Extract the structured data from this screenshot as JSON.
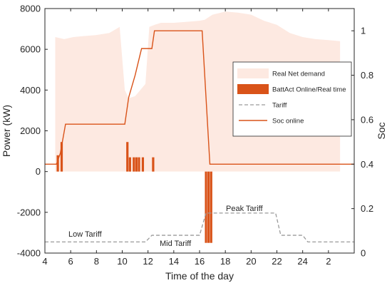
{
  "chart_data": {
    "type": "line",
    "x_ticks": [
      "4",
      "6",
      "8",
      "10",
      "12",
      "14",
      "16",
      "18",
      "20",
      "22",
      "24",
      "2"
    ],
    "xlabel": "Time of the day",
    "ylabel_left": "Power (kW)",
    "ylabel_right": "Soc",
    "ylim_left": [
      -4000,
      8000
    ],
    "ylim_right": [
      0.0,
      1.1
    ],
    "yticks_left": [
      "8000",
      "6000",
      "4000",
      "2000",
      "0",
      "-2000",
      "-4000"
    ],
    "yticks_right": [
      "1",
      "0.8",
      "0.6",
      "0.4",
      "0.2",
      "0"
    ],
    "grid": false,
    "legend_position": "right, middle",
    "legend": {
      "net_demand": "Real Net demand",
      "batt": "BattAct Online/Real time",
      "tariff": "Tariff",
      "soc": "Soc online"
    },
    "annotations": {
      "low": "Low Tariff",
      "mid": "Mid Tariff",
      "peak": "Peak Tariff"
    },
    "colors": {
      "net_demand": "#fde9e1",
      "batt": "#d95319",
      "tariff": "#9a9a9a",
      "soc": "#d95319",
      "axis": "#262626"
    },
    "series": [
      {
        "name": "Real Net demand",
        "axis": "left",
        "kind": "area",
        "x": [
          4.8,
          5.5,
          6.2,
          7.0,
          8.0,
          9.0,
          9.8,
          10.2,
          10.5,
          11.0,
          11.8,
          12.1,
          12.5,
          13.0,
          14.0,
          15.0,
          16.0,
          16.4,
          17.0,
          18.0,
          19.0,
          20.0,
          21.0,
          22.0,
          23.0,
          24.0,
          25.0,
          26.0,
          26.9
        ],
        "y": [
          6600,
          6500,
          6600,
          6650,
          6700,
          6800,
          7100,
          4000,
          3600,
          3700,
          4300,
          7100,
          7200,
          7300,
          7300,
          7350,
          7400,
          7450,
          7700,
          7850,
          7800,
          7700,
          7400,
          7200,
          6800,
          6600,
          6500,
          6450,
          6400
        ]
      },
      {
        "name": "BattAct Online/Real time",
        "axis": "left",
        "kind": "bar",
        "x": [
          5.0,
          5.3,
          10.4,
          10.6,
          10.9,
          11.1,
          11.3,
          11.6,
          12.4,
          16.5,
          16.7,
          16.9
        ],
        "y": [
          800,
          1450,
          1450,
          700,
          700,
          700,
          700,
          700,
          700,
          -3500,
          -3500,
          -3500
        ]
      },
      {
        "name": "Tariff",
        "axis": "right",
        "kind": "line",
        "x": [
          4,
          11.8,
          12.3,
          16.0,
          16.5,
          21.9,
          22.3,
          24.0,
          24.4,
          28
        ],
        "y": [
          0.05,
          0.05,
          0.08,
          0.08,
          0.18,
          0.18,
          0.08,
          0.08,
          0.05,
          0.05
        ]
      },
      {
        "name": "Soc online",
        "axis": "right",
        "kind": "line",
        "x": [
          4,
          4.9,
          5.2,
          5.6,
          10.2,
          10.5,
          11.0,
          11.5,
          12.3,
          12.5,
          16.2,
          16.8,
          28
        ],
        "y": [
          0.4,
          0.4,
          0.45,
          0.58,
          0.58,
          0.7,
          0.8,
          0.92,
          0.92,
          1.0,
          1.0,
          0.4,
          0.4
        ]
      }
    ]
  }
}
